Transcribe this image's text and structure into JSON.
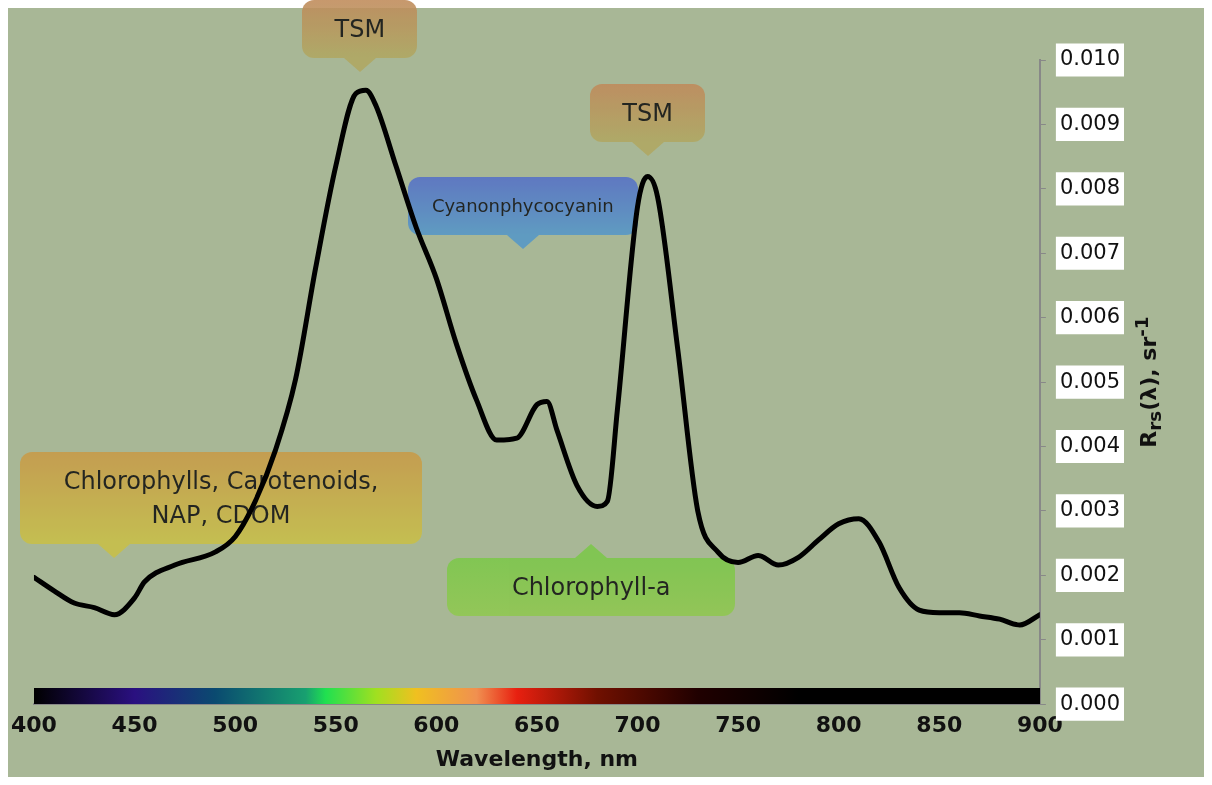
{
  "chart_data": {
    "type": "line",
    "xlabel": "Wavelength, nm",
    "ylabel": "R$_{rs}$(λ), sr$^{-1}$",
    "x": [
      400,
      410,
      420,
      430,
      440,
      450,
      455,
      470,
      490,
      500,
      510,
      520,
      530,
      540,
      550,
      560,
      565,
      570,
      580,
      590,
      600,
      610,
      620,
      630,
      640,
      650,
      655,
      660,
      670,
      680,
      685,
      690,
      700,
      705,
      710,
      720,
      730,
      740,
      750,
      760,
      770,
      780,
      790,
      800,
      810,
      820,
      830,
      840,
      850,
      860,
      870,
      880,
      890,
      900
    ],
    "series": [
      {
        "color": "#000000",
        "values": [
          0.00197,
          0.00176,
          0.00157,
          0.0015,
          0.00139,
          0.00165,
          0.0019,
          0.00216,
          0.00236,
          0.0026,
          0.00315,
          0.00394,
          0.00504,
          0.00677,
          0.00835,
          0.00948,
          0.00953,
          0.00929,
          0.00835,
          0.0074,
          0.00661,
          0.00559,
          0.00472,
          0.0041,
          0.00413,
          0.00465,
          0.0047,
          0.00425,
          0.00339,
          0.00307,
          0.00315,
          0.00457,
          0.00772,
          0.00819,
          0.00787,
          0.00551,
          0.00299,
          0.00236,
          0.0022,
          0.00231,
          0.00216,
          0.00228,
          0.00255,
          0.0028,
          0.00288,
          0.00252,
          0.00181,
          0.00146,
          0.00142,
          0.00142,
          0.00137,
          0.00132,
          0.00123,
          0.00139
        ]
      }
    ],
    "xlim": [
      400,
      900
    ],
    "xticks": [
      400,
      450,
      500,
      550,
      600,
      650,
      700,
      750,
      800,
      850,
      900
    ],
    "ylim": [
      0,
      0.01
    ],
    "yticks": [
      {
        "value": 0,
        "label": "0.000"
      },
      {
        "value": 0.001,
        "label": "0.001"
      },
      {
        "value": 0.002,
        "label": "0.002"
      },
      {
        "value": 0.003,
        "label": "0.003"
      },
      {
        "value": 0.004,
        "label": "0.004"
      },
      {
        "value": 0.005,
        "label": "0.005"
      },
      {
        "value": 0.006,
        "label": "0.006"
      },
      {
        "value": 0.007,
        "label": "0.007"
      },
      {
        "value": 0.008,
        "label": "0.008"
      },
      {
        "value": 0.009,
        "label": "0.009"
      },
      {
        "value": 0.01,
        "label": "0.010"
      }
    ],
    "annotations": [
      {
        "text": "TSM",
        "x": 562,
        "y": 0.0095
      },
      {
        "text": "TSM",
        "x": 705,
        "y": 0.0082
      },
      "Cyanonphycocyanin",
      "Chlorophyll-a",
      "Chlorophylls, Carotenoids, NAP, CDOM"
    ],
    "grid": false,
    "legend": false,
    "marker": "none",
    "line_style": "solid"
  }
}
